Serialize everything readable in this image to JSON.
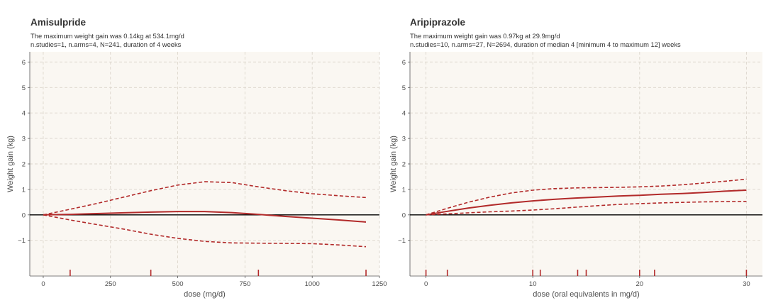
{
  "panels": [
    {
      "title": "Amisulpride",
      "subtitle1": "The maximum weight gain was 0.14kg at 534.1mg/d",
      "subtitle2": "n.studies=1, n.arms=4, N=241, duration of 4 weeks"
    },
    {
      "title": "Aripiprazole",
      "subtitle1": "The maximum weight gain was 0.97kg at 29.9mg/d",
      "subtitle2": "n.studies=10, n.arms=27, N=2694, duration of median 4 [minimum 4 to maximum 12] weeks"
    }
  ],
  "colors": {
    "panel_bg": "#faf7f2",
    "grid": "#dcd6cc",
    "line": "#b22a2a",
    "zero_line": "#000000",
    "axis_text": "#4d4d4d"
  },
  "chart_data": [
    {
      "type": "line",
      "title": "Amisulpride",
      "xlabel": "dose (mg/d)",
      "ylabel": "Weight gain (kg)",
      "xlim": [
        -50,
        1250
      ],
      "ylim": [
        -2.4,
        6.4
      ],
      "xticks": [
        0,
        250,
        500,
        750,
        1000,
        1250
      ],
      "xtick_labels": [
        "0",
        "250",
        "500",
        "750",
        "1000",
        "1250"
      ],
      "yticks": [
        -1,
        0,
        1,
        2,
        3,
        4,
        5,
        6
      ],
      "ytick_labels": [
        "−1",
        "0",
        "1",
        "2",
        "3",
        "4",
        "5",
        "6"
      ],
      "grid": true,
      "hline": 0,
      "series": [
        {
          "style": "solid",
          "x": [
            0,
            100,
            200,
            300,
            400,
            500,
            600,
            700,
            800,
            900,
            1000,
            1100,
            1200
          ],
          "y": [
            0,
            0.02,
            0.05,
            0.08,
            0.11,
            0.13,
            0.13,
            0.09,
            0.02,
            -0.06,
            -0.13,
            -0.2,
            -0.28
          ]
        },
        {
          "style": "dashed",
          "x": [
            0,
            100,
            200,
            300,
            400,
            500,
            600,
            700,
            800,
            900,
            1000,
            1100,
            1200
          ],
          "y": [
            0,
            0.22,
            0.45,
            0.7,
            0.95,
            1.17,
            1.3,
            1.27,
            1.1,
            0.95,
            0.83,
            0.75,
            0.68
          ]
        },
        {
          "style": "dashed",
          "x": [
            0,
            100,
            200,
            300,
            400,
            500,
            600,
            700,
            800,
            900,
            1000,
            1100,
            1200
          ],
          "y": [
            0,
            -0.2,
            -0.38,
            -0.56,
            -0.76,
            -0.92,
            -1.04,
            -1.1,
            -1.11,
            -1.12,
            -1.13,
            -1.18,
            -1.25
          ]
        }
      ],
      "rug": [
        100,
        400,
        800,
        1200
      ]
    },
    {
      "type": "line",
      "title": "Aripiprazole",
      "xlabel": "dose (oral equivalents in mg/d)",
      "ylabel": "Weight gain (kg)",
      "xlim": [
        -1.5,
        31.5
      ],
      "ylim": [
        -2.4,
        6.4
      ],
      "xticks": [
        0,
        10,
        20,
        30
      ],
      "xtick_labels": [
        "0",
        "10",
        "20",
        "30"
      ],
      "yticks": [
        -1,
        0,
        1,
        2,
        3,
        4,
        5,
        6
      ],
      "ytick_labels": [
        "−1",
        "0",
        "1",
        "2",
        "3",
        "4",
        "5",
        "6"
      ],
      "grid": true,
      "hline": 0,
      "series": [
        {
          "style": "solid",
          "x": [
            0,
            2,
            4,
            6,
            8,
            10,
            12,
            14,
            16,
            18,
            20,
            22,
            24,
            26,
            28,
            30
          ],
          "y": [
            0,
            0.14,
            0.27,
            0.38,
            0.47,
            0.55,
            0.61,
            0.66,
            0.7,
            0.74,
            0.77,
            0.81,
            0.84,
            0.88,
            0.93,
            0.97
          ]
        },
        {
          "style": "dashed",
          "x": [
            0,
            2,
            4,
            6,
            8,
            10,
            12,
            14,
            16,
            18,
            20,
            22,
            24,
            26,
            28,
            30
          ],
          "y": [
            0,
            0.26,
            0.5,
            0.7,
            0.86,
            0.97,
            1.03,
            1.06,
            1.07,
            1.08,
            1.1,
            1.13,
            1.18,
            1.25,
            1.32,
            1.4
          ]
        },
        {
          "style": "dashed",
          "x": [
            0,
            2,
            4,
            6,
            8,
            10,
            12,
            14,
            16,
            18,
            20,
            22,
            24,
            26,
            28,
            30
          ],
          "y": [
            0,
            0.04,
            0.08,
            0.12,
            0.15,
            0.19,
            0.24,
            0.3,
            0.36,
            0.41,
            0.44,
            0.47,
            0.49,
            0.51,
            0.52,
            0.53
          ]
        }
      ],
      "rug": [
        0,
        2,
        10,
        10.7,
        14.2,
        15,
        20,
        21.4,
        30
      ]
    }
  ]
}
